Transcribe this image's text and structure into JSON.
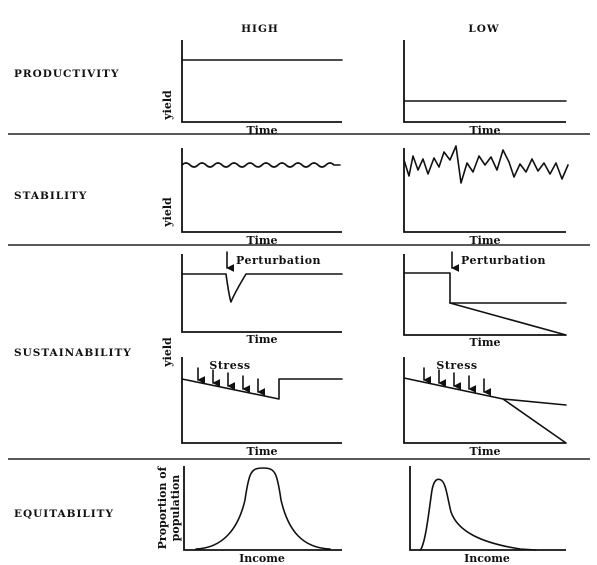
{
  "columns": {
    "high": "HIGH",
    "low": "LOW"
  },
  "rows": {
    "productivity": "PRODUCTIVITY",
    "stability": "STABILITY",
    "sustainability": "SUSTAINABILITY",
    "equitability": "EQUITABILITY"
  },
  "axes": {
    "time": "Time",
    "yield": "yield",
    "income": "Income",
    "proportion_line1": "Proportion of",
    "proportion_line2": "population"
  },
  "annotations": {
    "perturbation": "Perturbation",
    "stress": "Stress"
  }
}
